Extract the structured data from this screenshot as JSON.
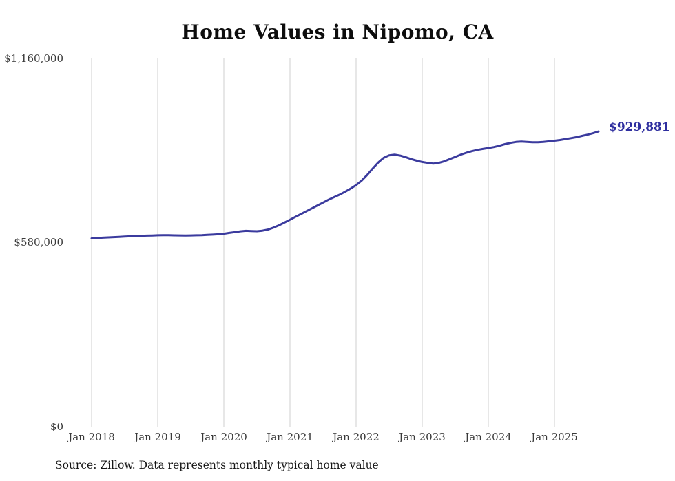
{
  "chart_data": {
    "type": "line",
    "title": "Home Values in Nipomo, CA",
    "xlabel": "",
    "ylabel": "",
    "x_unit": "month",
    "x_start_label": "Jan 2018",
    "ylim": [
      0,
      1160000
    ],
    "grid": "vertical-only",
    "legend_position": "none",
    "line_color": "#3b3b9e",
    "gridline_color": "#cfcfcf",
    "latest_value_label": "$929,881",
    "latest_value": 929881,
    "x_tick_labels": [
      "Jan 2018",
      "Jan 2019",
      "Jan 2020",
      "Jan 2021",
      "Jan 2022",
      "Jan 2023",
      "Jan 2024",
      "Jan 2025"
    ],
    "x_tick_month_indices": [
      0,
      12,
      24,
      36,
      48,
      60,
      72,
      84
    ],
    "y_ticks": [
      {
        "value": 0,
        "label": "$0"
      },
      {
        "value": 580000,
        "label": "$580,000"
      },
      {
        "value": 1160000,
        "label": "$1,160,000"
      }
    ],
    "series_name": "Monthly typical home value",
    "values": [
      593000,
      594200,
      595300,
      596300,
      597200,
      598100,
      599000,
      599800,
      600500,
      601200,
      601800,
      602400,
      603000,
      603400,
      603200,
      602800,
      602500,
      602400,
      602600,
      603000,
      603500,
      604200,
      605100,
      606300,
      608000,
      610500,
      613000,
      615500,
      617000,
      616500,
      615800,
      617500,
      621000,
      627000,
      634500,
      643000,
      652000,
      661000,
      670000,
      679000,
      688000,
      697000,
      706000,
      715000,
      723000,
      731000,
      740000,
      750000,
      761000,
      775000,
      793000,
      813000,
      832000,
      847000,
      855000,
      857000,
      854000,
      849000,
      843000,
      838000,
      834000,
      831000,
      829000,
      831000,
      836000,
      843000,
      850000,
      857000,
      863000,
      868000,
      872000,
      875000,
      878000,
      881000,
      885000,
      890000,
      894000,
      897000,
      898000,
      897000,
      896000,
      896000,
      897000,
      899000,
      901000,
      903000,
      906000,
      909000,
      912000,
      916000,
      920000,
      924500,
      929881
    ]
  },
  "source_note": "Source: Zillow. Data represents monthly typical home value"
}
